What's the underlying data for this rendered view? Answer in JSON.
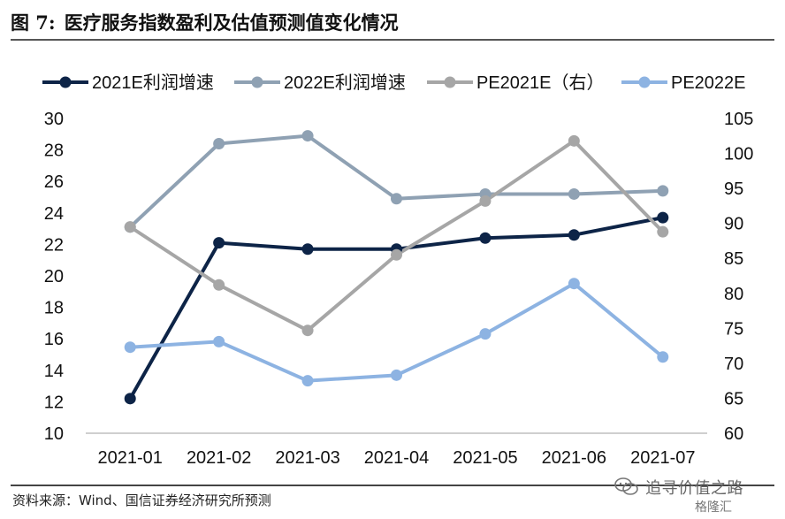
{
  "header": {
    "figure_no": "图  7:",
    "title": "医疗服务指数盈利及估值预测值变化情况"
  },
  "chart_data": {
    "type": "line",
    "title": "医疗服务指数盈利及估值预测值变化情况",
    "categories": [
      "2021-01",
      "2021-02",
      "2021-03",
      "2021-04",
      "2021-05",
      "2021-06",
      "2021-07"
    ],
    "left_axis": {
      "range": [
        10,
        30
      ],
      "ticks": [
        "10",
        "12",
        "14",
        "16",
        "18",
        "20",
        "22",
        "24",
        "26",
        "28",
        "30"
      ]
    },
    "right_axis": {
      "range": [
        60,
        105
      ],
      "ticks": [
        "60",
        "65",
        "70",
        "75",
        "80",
        "85",
        "90",
        "95",
        "100",
        "105"
      ]
    },
    "legend_position": "top",
    "series": [
      {
        "name": "2021E利润增速",
        "axis": "left",
        "color": "#0d2447",
        "values": [
          12.2,
          22.1,
          21.7,
          21.7,
          22.4,
          22.6,
          23.7
        ]
      },
      {
        "name": "2022E利润增速",
        "axis": "left",
        "color": "#8fa1b3",
        "values": [
          23.1,
          28.4,
          28.9,
          24.9,
          25.2,
          25.2,
          25.4
        ]
      },
      {
        "name": "PE2021E（右）",
        "axis": "right",
        "color": "#a6a6a6",
        "values": [
          89.5,
          81.2,
          74.7,
          85.5,
          93.2,
          101.8,
          88.8
        ]
      },
      {
        "name": "PE2022E",
        "axis": "right",
        "color": "#8db3e2",
        "values": [
          72.3,
          73.1,
          67.5,
          68.3,
          74.2,
          81.4,
          70.9
        ]
      }
    ]
  },
  "footer": {
    "source": "资料来源：Wind、国信证券经济研究所预测"
  },
  "watermark": {
    "name": "追寻价值之路",
    "sub": "格隆汇",
    "icon": "wechat-icon"
  }
}
